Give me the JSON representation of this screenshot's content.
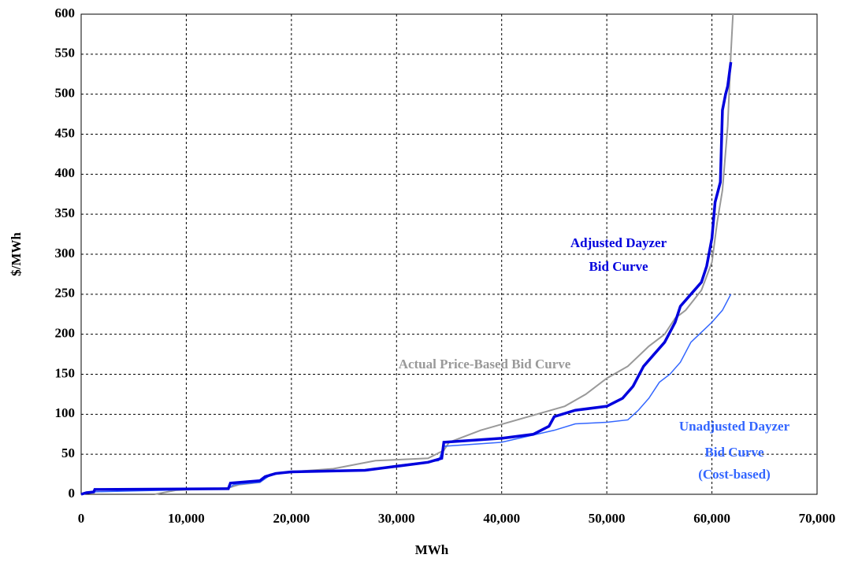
{
  "chart_data": {
    "type": "line",
    "xlabel": "MWh",
    "ylabel": "$/MWh",
    "xlim": [
      0,
      70000
    ],
    "ylim": [
      0,
      600
    ],
    "xticks": [
      0,
      {
        "value": 10000,
        "label": "10,000"
      },
      {
        "value": 20000,
        "label": "20,000"
      },
      {
        "value": 30000,
        "label": "30,000"
      },
      {
        "value": 40000,
        "label": "40,000"
      },
      {
        "value": 50000,
        "label": "50,000"
      },
      {
        "value": 60000,
        "label": "60,000"
      },
      {
        "value": 70000,
        "label": "70,000"
      }
    ],
    "yticks": [
      0,
      50,
      100,
      150,
      200,
      250,
      300,
      350,
      400,
      450,
      500,
      550,
      600
    ],
    "grid": true,
    "series": [
      {
        "name": "Actual Price-Based Bid Curve",
        "color": "#999999",
        "x": [
          7000,
          9000,
          14000,
          15000,
          17000,
          18000,
          20000,
          24000,
          28000,
          33000,
          34500,
          35000,
          38000,
          42000,
          46000,
          48000,
          50000,
          52000,
          54000,
          55500,
          56500,
          57500,
          59000,
          60000,
          60500,
          61000,
          61500,
          61800,
          62000
        ],
        "values": [
          0,
          5,
          8,
          12,
          15,
          25,
          28,
          32,
          42,
          45,
          55,
          65,
          80,
          95,
          110,
          125,
          145,
          160,
          185,
          200,
          220,
          230,
          255,
          290,
          340,
          380,
          460,
          550,
          600
        ]
      },
      {
        "name": "Unadjusted Dayzer Bid Curve",
        "color": "#3366ff",
        "x": [
          0,
          1000,
          14000,
          14500,
          17000,
          18000,
          20000,
          27000,
          30000,
          34000,
          34500,
          40000,
          45000,
          47000,
          50000,
          52000,
          53000,
          54000,
          55000,
          56000,
          57000,
          58000,
          60000,
          61000,
          61800
        ],
        "values": [
          0,
          3,
          7,
          12,
          15,
          24,
          28,
          30,
          36,
          42,
          60,
          65,
          80,
          88,
          90,
          93,
          105,
          120,
          140,
          150,
          165,
          190,
          215,
          230,
          250
        ]
      },
      {
        "name": "Adjusted Dayzer Bid Curve",
        "color": "#0000dd",
        "x": [
          0,
          500,
          1200,
          1300,
          14000,
          14200,
          17000,
          17500,
          18500,
          20000,
          27000,
          30000,
          33000,
          34300,
          34500,
          40000,
          43000,
          44500,
          45000,
          47000,
          50000,
          51500,
          52500,
          53500,
          54500,
          55500,
          56500,
          57000,
          58000,
          59000,
          59500,
          60000,
          60300,
          60800,
          61000,
          61300,
          61500,
          61800
        ],
        "values": [
          0,
          2,
          3,
          6,
          7,
          14,
          17,
          22,
          26,
          28,
          30,
          35,
          40,
          45,
          65,
          70,
          75,
          85,
          97,
          105,
          110,
          120,
          135,
          160,
          175,
          190,
          215,
          235,
          250,
          265,
          285,
          320,
          365,
          390,
          480,
          500,
          510,
          540
        ]
      }
    ],
    "annotations": [
      {
        "text": "Adjusted Dayzer",
        "color": "#0000dd"
      },
      {
        "text": "Bid Curve",
        "color": "#0000dd"
      },
      {
        "text": "Actual Price-Based Bid Curve",
        "color": "#999999"
      },
      {
        "text": "Unadjusted Dayzer",
        "color": "#3366ff"
      },
      {
        "text": "Bid Curve",
        "color": "#3366ff"
      },
      {
        "text": "(Cost-based)",
        "color": "#3366ff"
      }
    ]
  }
}
